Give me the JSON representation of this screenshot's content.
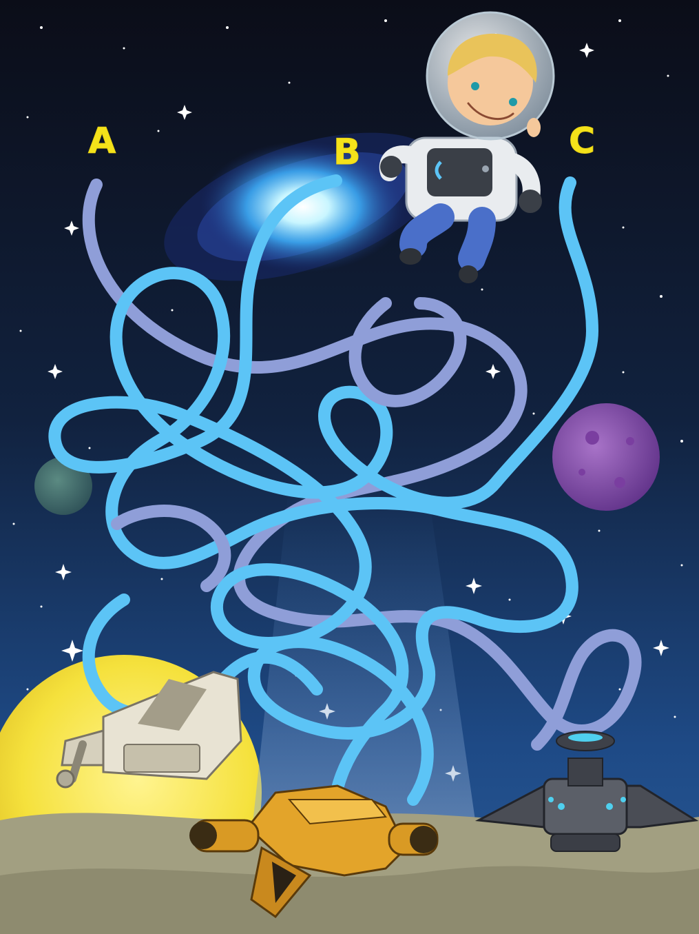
{
  "game": {
    "type": "maze",
    "start_labels": [
      "A",
      "B",
      "C"
    ],
    "path_count": 3,
    "path_colors": {
      "light_blue": "#5cc4f6",
      "lavender": "#8f9ed8"
    },
    "characters": [
      "astronaut"
    ],
    "destinations": [
      "white-spaceship",
      "orange-spaceship",
      "gray-spaceship"
    ]
  },
  "colors": {
    "sky_top": "#0b0d18",
    "sky_bottom": "#1e4a86",
    "moon": "#f6e547",
    "ground": "#a19d7f",
    "planet_purple": "#8b4fae",
    "planet_green": "#3d6b6b",
    "label": "#f4e21a"
  }
}
